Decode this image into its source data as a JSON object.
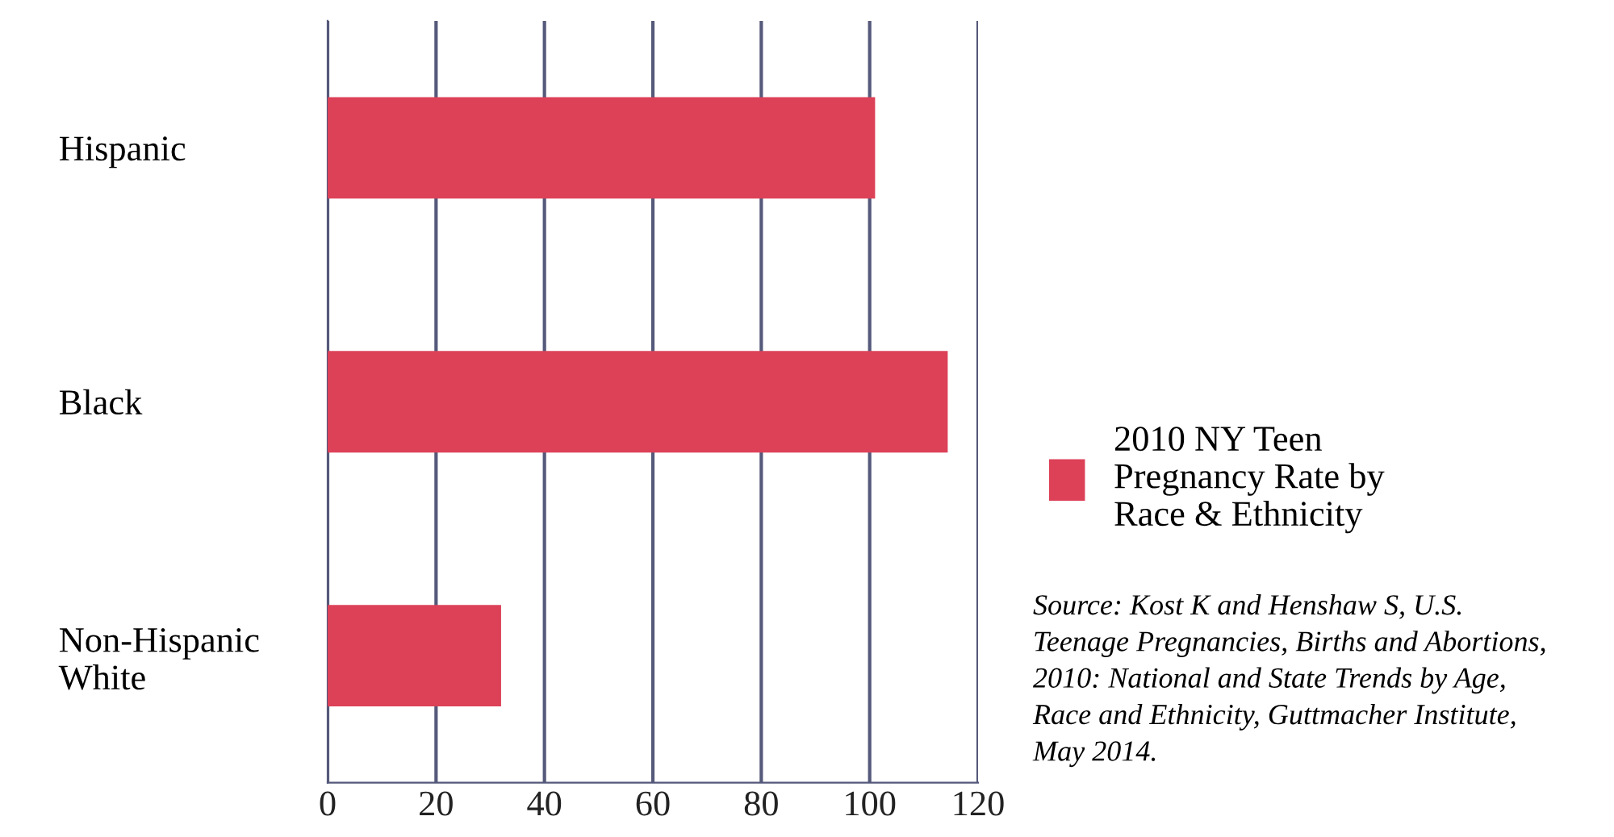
{
  "chart_data": {
    "type": "bar",
    "orientation": "horizontal",
    "categories": [
      "Hispanic",
      "Black",
      "Non-Hispanic\nWhite"
    ],
    "series": [
      {
        "name": "2010 NY Teen\nPregnancy Rate by\nRace & Ethnicity",
        "color": "#dc4158",
        "values": [
          101,
          114.4,
          32
        ]
      }
    ],
    "xlim": [
      0,
      120
    ],
    "xticks": [
      0,
      20,
      40,
      60,
      80,
      100,
      120
    ],
    "grid": "x",
    "legend": "right",
    "annotations": [
      "Source: Kost K and Henshaw S, U.S.\nTeenage Pregnancies, Births and Abortions,\n2010: National and State Trends by Age,\nRace and Ethnicity, Guttmacher Institute,\nMay 2014."
    ]
  }
}
